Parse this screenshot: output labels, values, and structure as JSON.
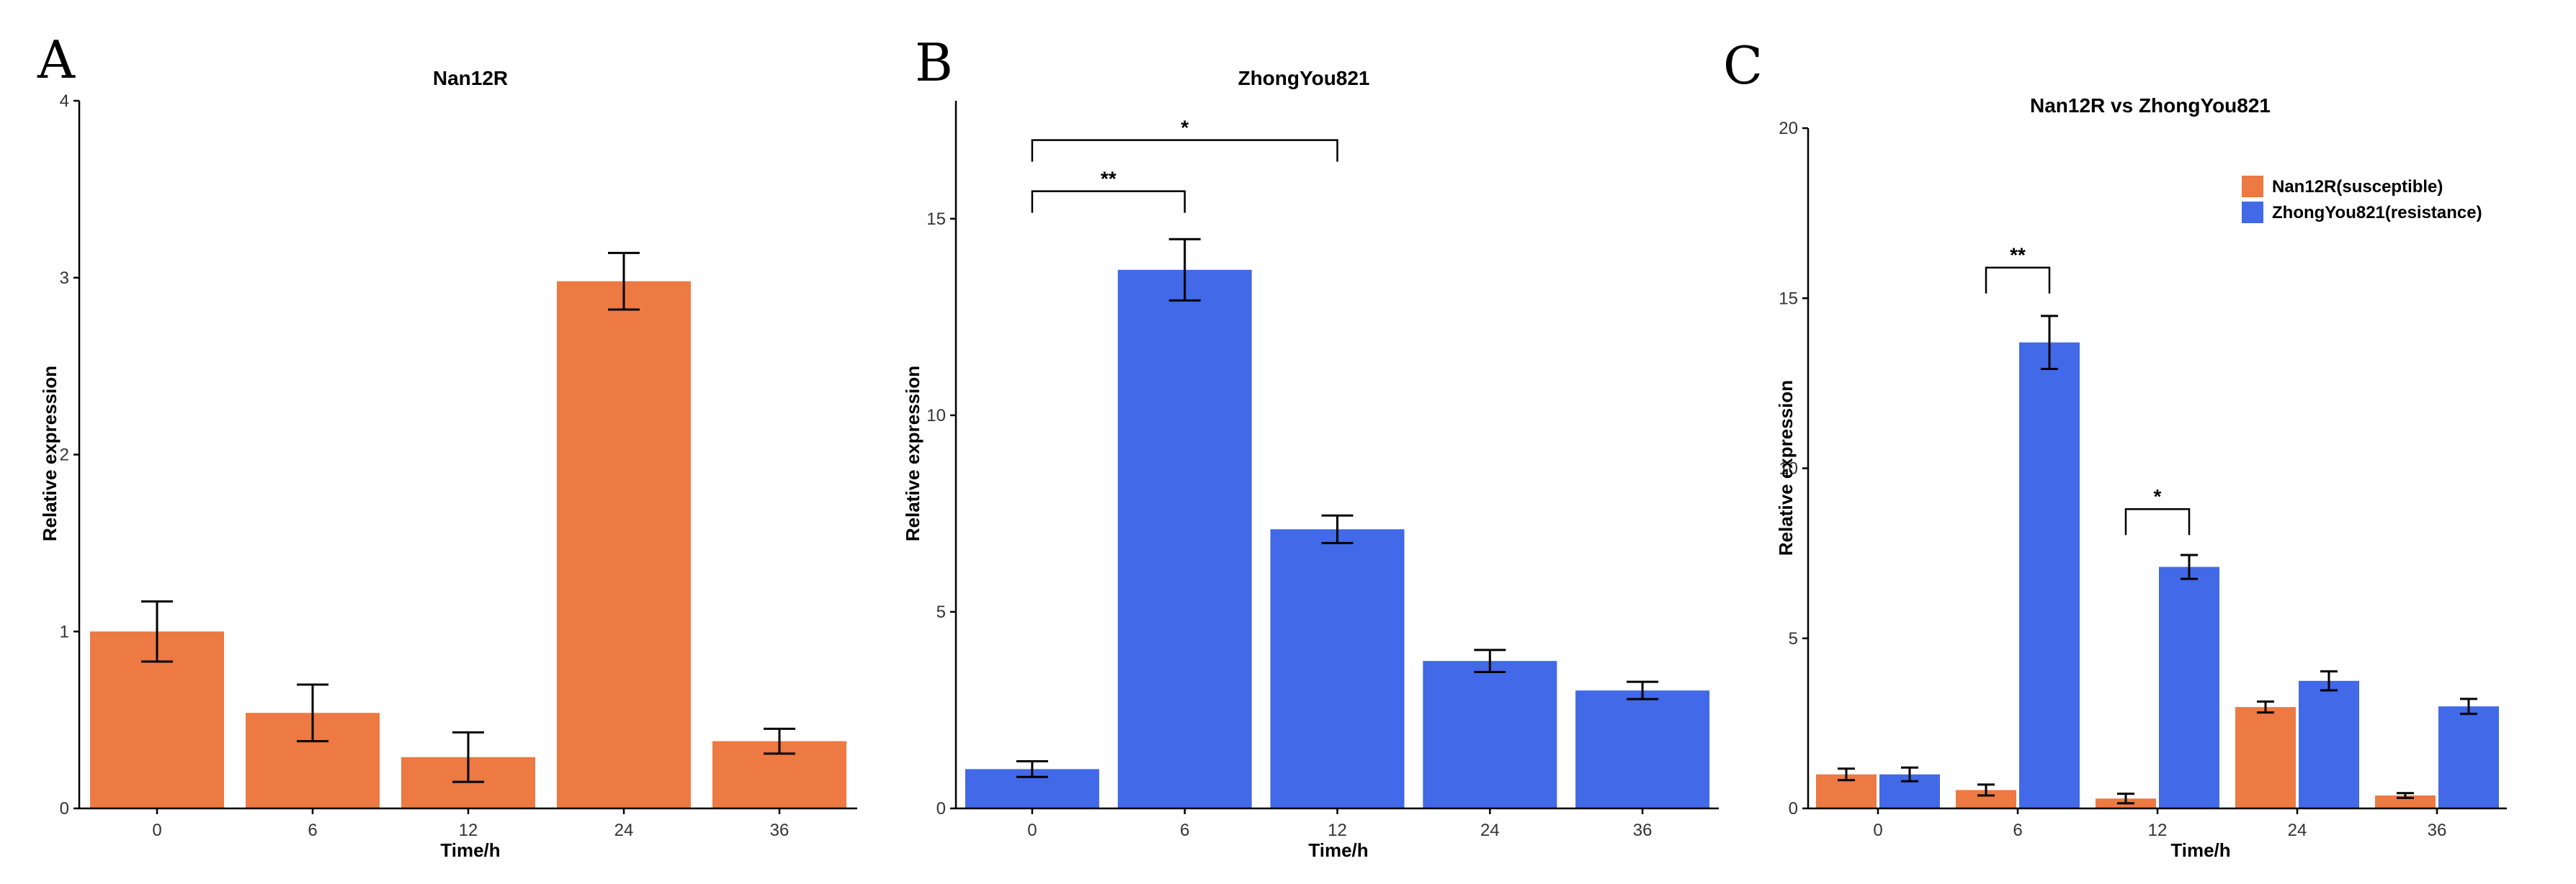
{
  "figure": {
    "panel_letters": [
      "A",
      "B",
      "C"
    ]
  },
  "colors": {
    "nan12r": "#ED7943",
    "zhongyou821": "#4169E8"
  },
  "chart_data": [
    {
      "type": "bar",
      "title": "Nan12R",
      "xlabel": "Time/h",
      "ylabel": "Relative expression",
      "categories": [
        "0",
        "6",
        "12",
        "24",
        "36"
      ],
      "ylim": [
        0,
        4
      ],
      "yticks": [
        0,
        1,
        2,
        3,
        4
      ],
      "series": [
        {
          "name": "Nan12R",
          "color": "#ED7943",
          "values": [
            1.0,
            0.54,
            0.29,
            2.98,
            0.38
          ],
          "errors": [
            0.17,
            0.16,
            0.14,
            0.16,
            0.07
          ]
        }
      ],
      "significance": []
    },
    {
      "type": "bar",
      "title": "ZhongYou821",
      "xlabel": "Time/h",
      "ylabel": "Relative expression",
      "categories": [
        "0",
        "6",
        "12",
        "24",
        "36"
      ],
      "ylim": [
        0,
        18
      ],
      "yticks": [
        0,
        5,
        10,
        15
      ],
      "series": [
        {
          "name": "ZhongYou821",
          "color": "#4169E8",
          "values": [
            1.0,
            13.7,
            7.1,
            3.75,
            3.0
          ],
          "errors": [
            0.2,
            0.78,
            0.35,
            0.28,
            0.22
          ]
        }
      ],
      "significance": [
        {
          "from": 0,
          "to": 1,
          "label": "**",
          "y": 15.7
        },
        {
          "from": 0,
          "to": 2,
          "label": "*",
          "y": 17.0
        }
      ]
    },
    {
      "type": "bar",
      "title": "Nan12R vs ZhongYou821",
      "xlabel": "Time/h",
      "ylabel": "Relative expression",
      "categories": [
        "0",
        "6",
        "12",
        "24",
        "36"
      ],
      "ylim": [
        0,
        20
      ],
      "yticks": [
        0,
        5,
        10,
        15,
        20
      ],
      "legend": {
        "position": "top-right",
        "entries": [
          "Nan12R(susceptible)",
          "ZhongYou821(resistance)"
        ]
      },
      "series": [
        {
          "name": "Nan12R(susceptible)",
          "color": "#ED7943",
          "values": [
            1.0,
            0.54,
            0.29,
            2.98,
            0.38
          ],
          "errors": [
            0.17,
            0.16,
            0.14,
            0.16,
            0.07
          ]
        },
        {
          "name": "ZhongYou821(resistance)",
          "color": "#4169E8",
          "values": [
            1.0,
            13.7,
            7.1,
            3.75,
            3.0
          ],
          "errors": [
            0.2,
            0.78,
            0.35,
            0.28,
            0.22
          ]
        }
      ],
      "significance": [
        {
          "category": 1,
          "label": "**",
          "y": 15.9
        },
        {
          "category": 2,
          "label": "*",
          "y": 8.8
        }
      ]
    }
  ]
}
